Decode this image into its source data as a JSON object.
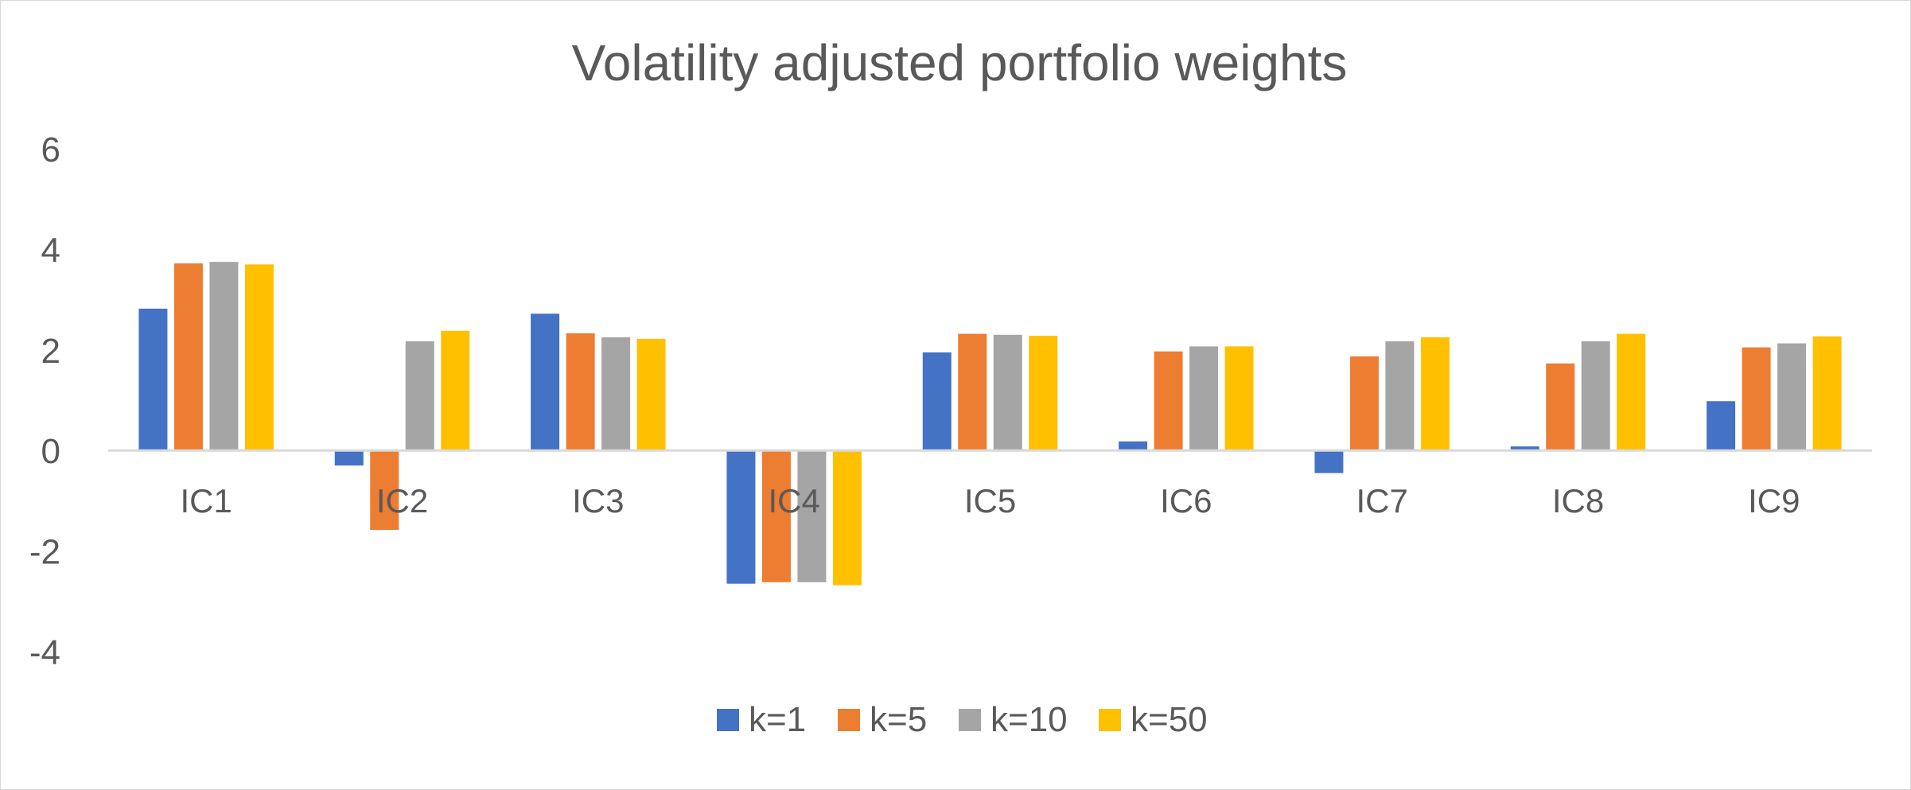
{
  "chart_data": {
    "type": "bar",
    "title": "Volatility adjusted portfolio weights",
    "xlabel": "",
    "ylabel": "",
    "categories": [
      "IC1",
      "IC2",
      "IC3",
      "IC4",
      "IC5",
      "IC6",
      "IC7",
      "IC8",
      "IC9"
    ],
    "series": [
      {
        "name": "k=1",
        "color": "#4472C4",
        "values": [
          2.82,
          -0.3,
          2.72,
          -2.65,
          1.95,
          0.18,
          -0.45,
          0.08,
          0.98
        ]
      },
      {
        "name": "k=5",
        "color": "#ED7D31",
        "values": [
          3.72,
          -1.58,
          2.33,
          -2.62,
          2.32,
          1.97,
          1.87,
          1.73,
          2.05
        ]
      },
      {
        "name": "k=10",
        "color": "#A5A5A5",
        "values": [
          3.75,
          2.17,
          2.25,
          -2.62,
          2.3,
          2.07,
          2.17,
          2.17,
          2.13
        ]
      },
      {
        "name": "k=50",
        "color": "#FFC000",
        "values": [
          3.7,
          2.38,
          2.22,
          -2.68,
          2.28,
          2.07,
          2.25,
          2.32,
          2.27
        ]
      }
    ],
    "ylim": [
      -4,
      6
    ],
    "yticks": [
      6,
      4,
      2,
      0,
      -2,
      -4
    ],
    "ytick_labels": [
      "6",
      "4",
      "2",
      "0",
      "-2",
      "-4"
    ],
    "grid": false,
    "legend_position": "bottom"
  }
}
